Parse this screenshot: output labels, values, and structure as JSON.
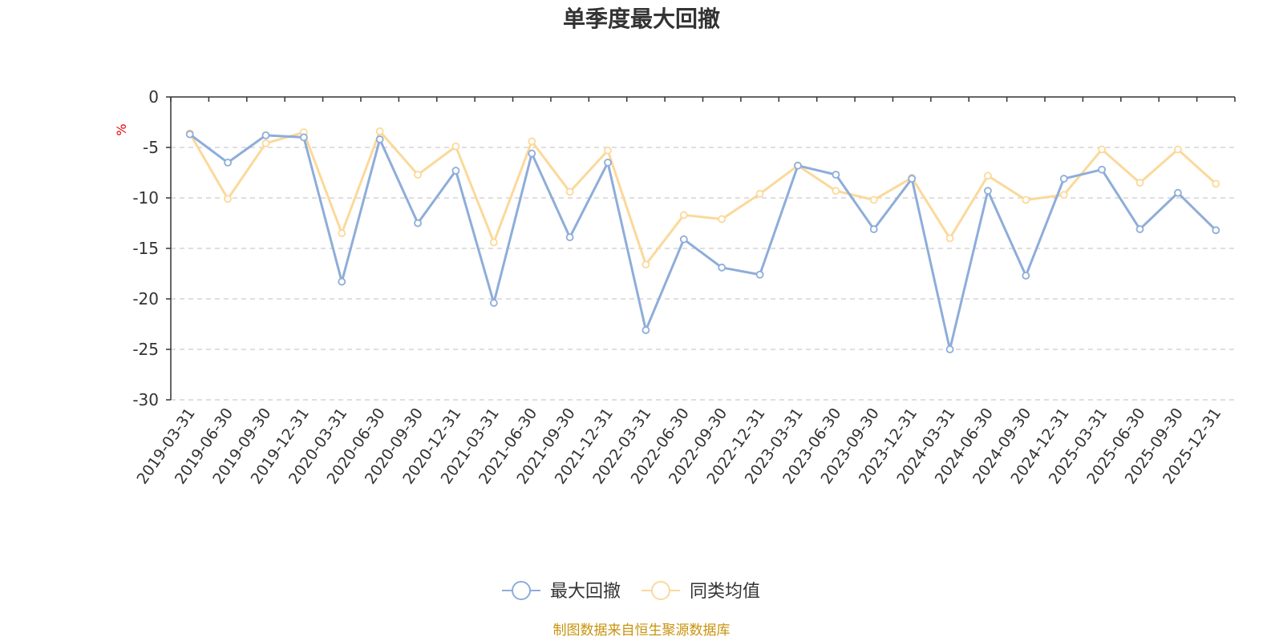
{
  "chart_data": {
    "type": "line",
    "title": "单季度最大回撤",
    "ylabel": "%",
    "ylim": [
      -30,
      0
    ],
    "yticks": [
      0,
      -5,
      -10,
      -15,
      -20,
      -25,
      -30
    ],
    "grid": true,
    "legend_position": "bottom-center",
    "x": [
      "2019-03-31",
      "2019-06-30",
      "2019-09-30",
      "2019-12-31",
      "2020-03-31",
      "2020-06-30",
      "2020-09-30",
      "2020-12-31",
      "2021-03-31",
      "2021-06-30",
      "2021-09-30",
      "2021-12-31",
      "2022-03-31",
      "2022-06-30",
      "2022-09-30",
      "2022-12-31",
      "2023-03-31",
      "2023-06-30",
      "2023-09-30",
      "2023-12-31",
      "2024-03-31",
      "2024-06-30",
      "2024-09-30",
      "2024-12-31",
      "2025-03-31",
      "2025-06-30",
      "2025-09-30",
      "2025-12-31"
    ],
    "series": [
      {
        "name": "最大回撤",
        "color": "#8eadd9",
        "values": [
          -3.7,
          -6.5,
          -3.8,
          -4.0,
          -18.3,
          -4.2,
          -12.5,
          -7.3,
          -20.4,
          -5.6,
          -13.9,
          -6.5,
          -23.1,
          -14.1,
          -16.9,
          -17.6,
          -6.8,
          -7.7,
          -13.1,
          -8.1,
          -25.0,
          -9.3,
          -17.7,
          -8.1,
          -7.2,
          -13.1,
          -9.5,
          -13.2
        ]
      },
      {
        "name": "同类均值",
        "color": "#fbd99b",
        "values": [
          -3.6,
          -10.1,
          -4.6,
          -3.5,
          -13.5,
          -3.4,
          -7.7,
          -4.9,
          -14.4,
          -4.4,
          -9.4,
          -5.3,
          -16.6,
          -11.7,
          -12.1,
          -9.6,
          -6.8,
          -9.3,
          -10.2,
          -8.0,
          -14.0,
          -7.8,
          -10.2,
          -9.7,
          -5.2,
          -8.5,
          -5.2,
          -8.6
        ]
      }
    ]
  },
  "source_text": "制图数据来自恒生聚源数据库",
  "colors": {
    "axis": "#333333",
    "grid": "#cccccc",
    "unit": "#e8000b",
    "source": "#c8930d"
  }
}
